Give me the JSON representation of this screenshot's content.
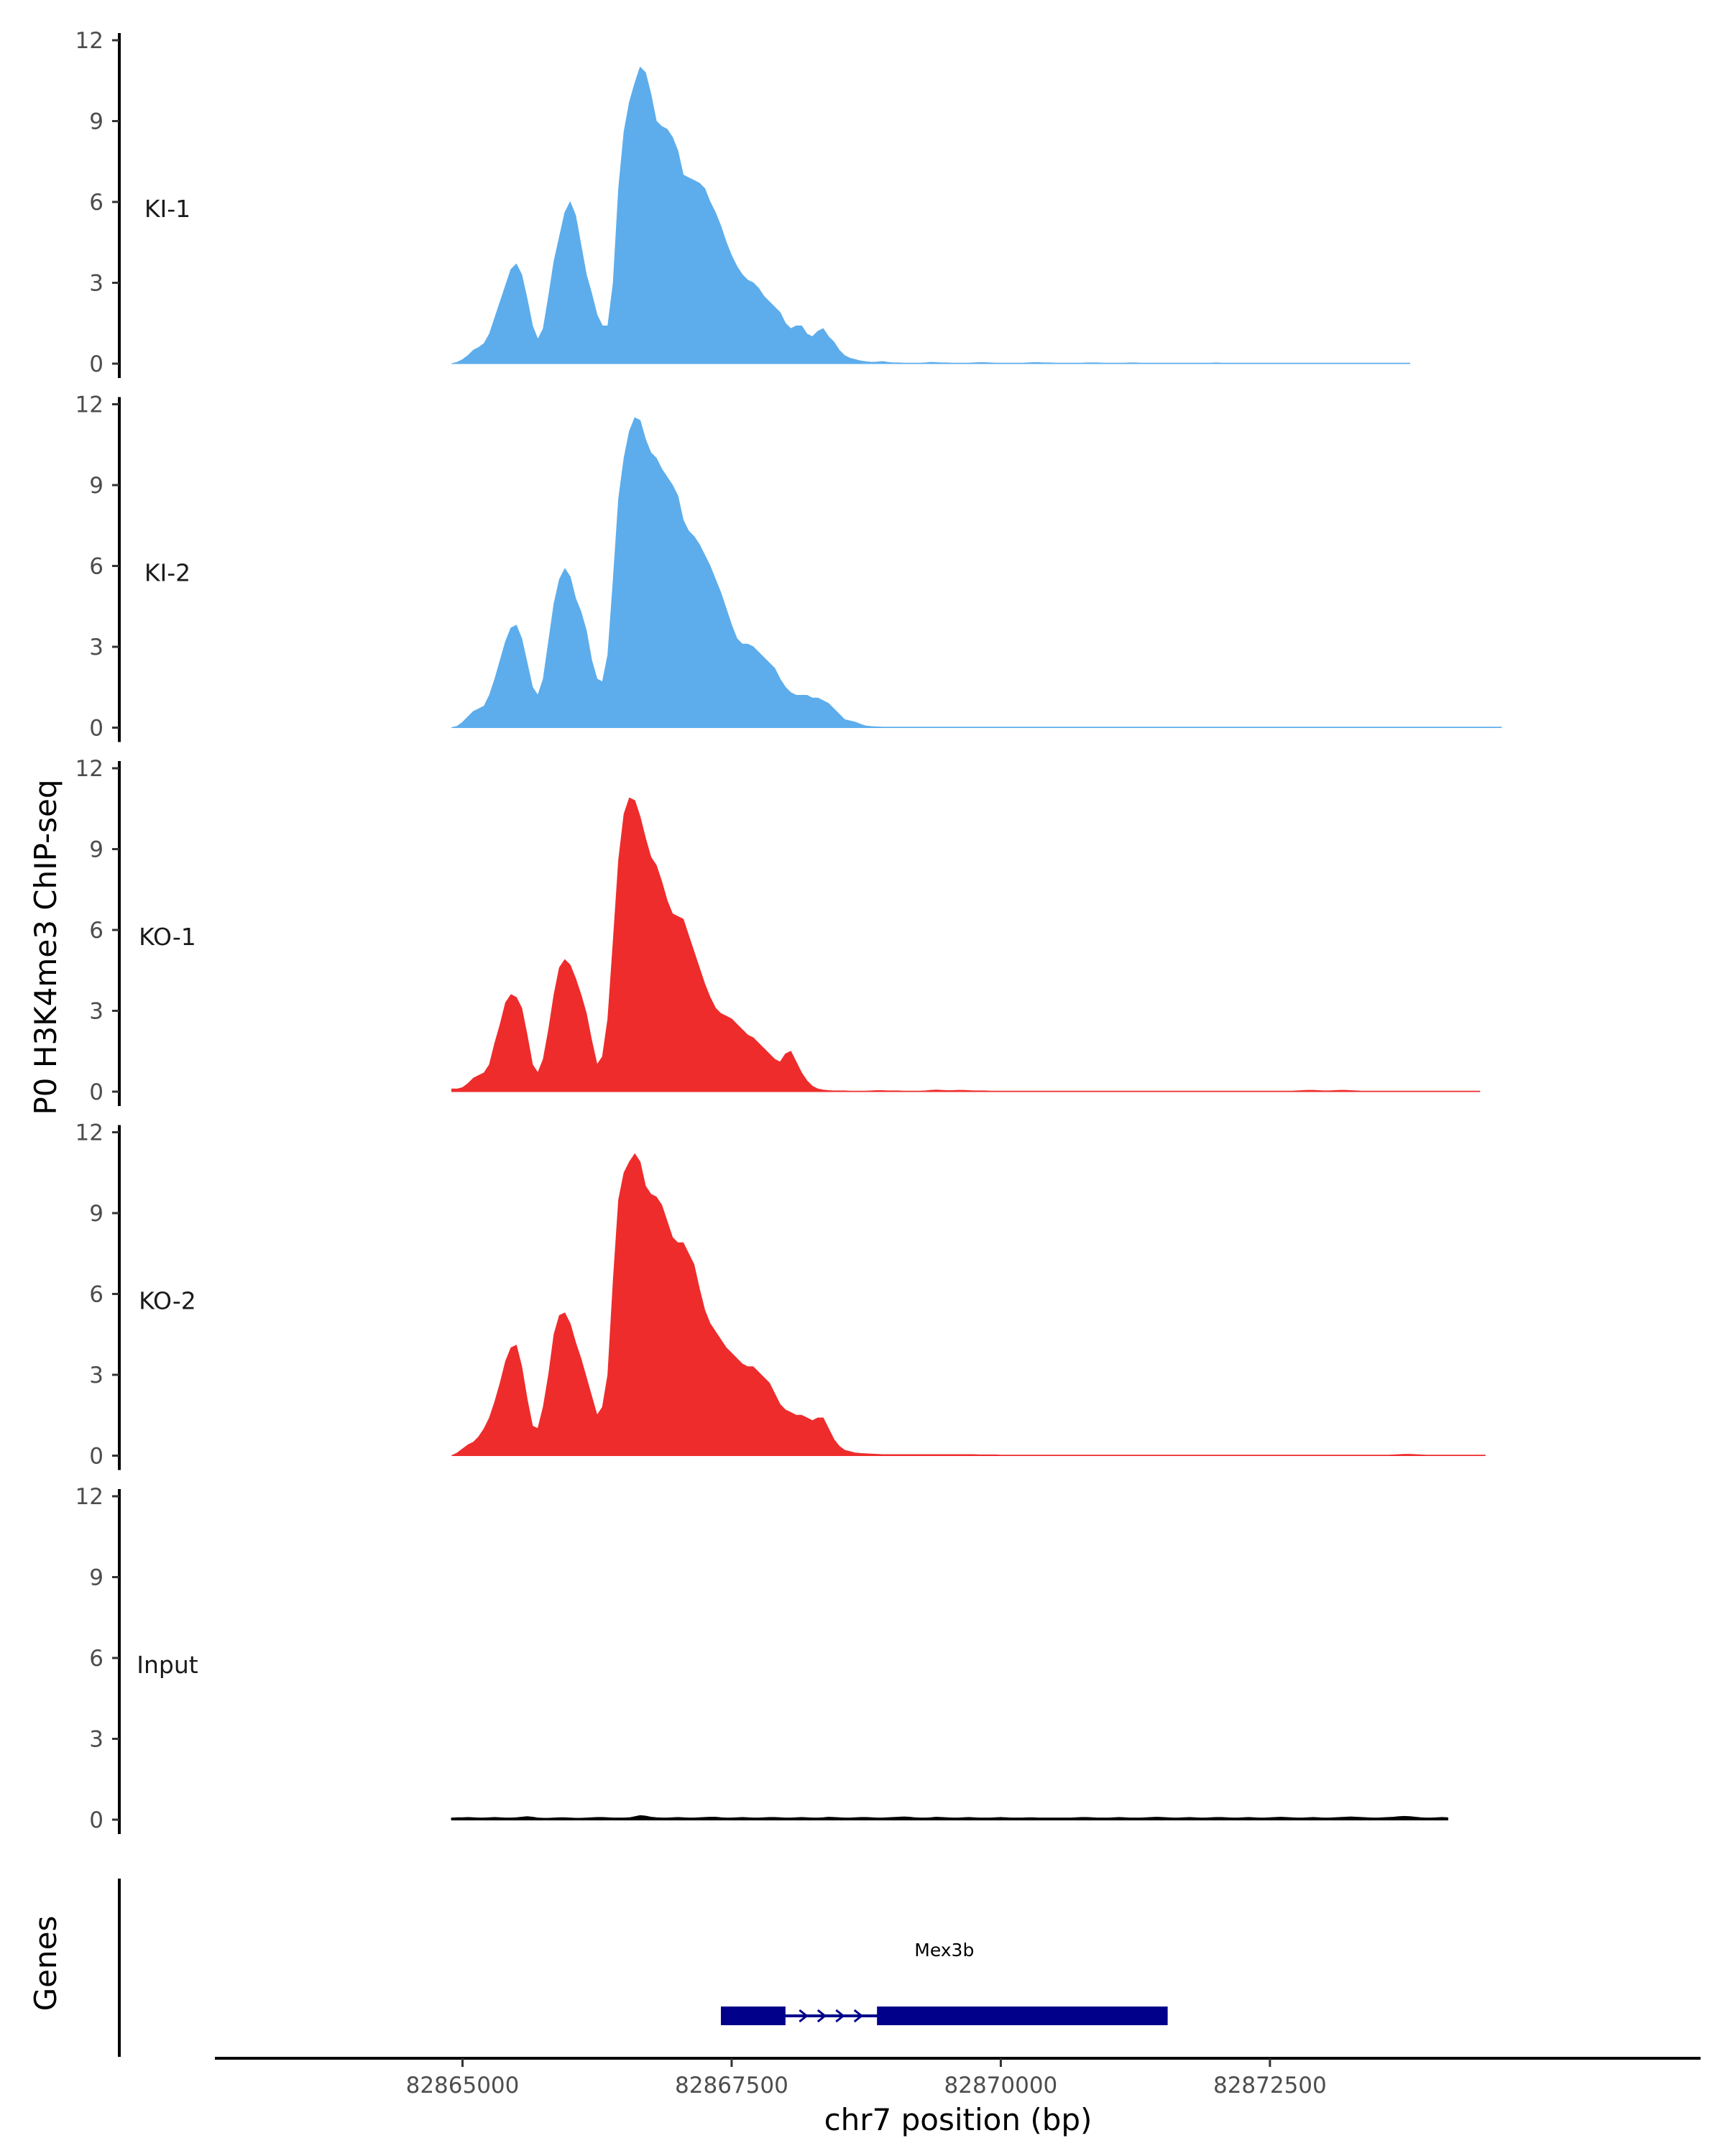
{
  "chart_data": {
    "type": "area",
    "ylabel": "P0 H3K4me3 ChIP-seq",
    "xlabel": "chr7 position (bp)",
    "xlim": [
      82862700,
      82876500
    ],
    "ylim": [
      0,
      12
    ],
    "yticks": [
      0,
      3,
      6,
      9,
      12
    ],
    "xticks": [
      82865000,
      82867500,
      82870000,
      82872500
    ],
    "xtick_labels": [
      "82865000",
      "82867500",
      "82870000",
      "82872500"
    ],
    "x_start": 82864900,
    "x_step": 50,
    "tracks": [
      {
        "name": "KI-1",
        "color": "#5DADEC",
        "values": [
          0.0,
          0.05,
          0.15,
          0.3,
          0.5,
          0.6,
          0.75,
          1.1,
          1.7,
          2.3,
          2.9,
          3.5,
          3.7,
          3.3,
          2.4,
          1.4,
          0.9,
          1.3,
          2.5,
          3.8,
          4.7,
          5.6,
          6.0,
          5.5,
          4.4,
          3.3,
          2.6,
          1.8,
          1.4,
          1.4,
          3.0,
          6.5,
          8.6,
          9.7,
          10.4,
          11.0,
          10.8,
          10.0,
          9.0,
          8.8,
          8.7,
          8.4,
          7.9,
          7.0,
          6.9,
          6.8,
          6.7,
          6.5,
          6.0,
          5.6,
          5.1,
          4.5,
          4.0,
          3.6,
          3.3,
          3.1,
          3.0,
          2.8,
          2.5,
          2.3,
          2.1,
          1.9,
          1.5,
          1.3,
          1.4,
          1.4,
          1.1,
          1.0,
          1.2,
          1.3,
          1.0,
          0.8,
          0.5,
          0.3,
          0.2,
          0.15,
          0.1,
          0.07,
          0.05,
          0.06,
          0.08,
          0.05,
          0.03,
          0.03,
          0.02,
          0.02,
          0.02,
          0.02,
          0.03,
          0.05,
          0.04,
          0.03,
          0.03,
          0.02,
          0.02,
          0.02,
          0.02,
          0.03,
          0.04,
          0.04,
          0.03,
          0.02,
          0.02,
          0.02,
          0.02,
          0.02,
          0.02,
          0.03,
          0.04,
          0.04,
          0.03,
          0.03,
          0.02,
          0.02,
          0.02,
          0.02,
          0.02,
          0.02,
          0.03,
          0.03,
          0.03,
          0.02,
          0.02,
          0.02,
          0.02,
          0.02,
          0.03,
          0.03,
          0.02,
          0.02,
          0.02,
          0.02,
          0.02,
          0.02,
          0.02,
          0.02,
          0.02,
          0.02,
          0.02,
          0.02,
          0.02,
          0.02,
          0.03,
          0.02,
          0.02,
          0.02,
          0.02,
          0.02,
          0.02,
          0.02,
          0.02,
          0.02,
          0.02,
          0.02,
          0.02,
          0.02,
          0.02,
          0.02,
          0.02,
          0.02,
          0.02,
          0.02,
          0.02,
          0.02,
          0.02,
          0.02,
          0.02,
          0.02,
          0.02,
          0.02,
          0.02,
          0.02,
          0.02,
          0.02,
          0.02,
          0.02,
          0.02,
          0.02,
          0.02
        ]
      },
      {
        "name": "KI-2",
        "color": "#5DADEC",
        "values": [
          0.0,
          0.05,
          0.2,
          0.4,
          0.6,
          0.7,
          0.8,
          1.2,
          1.8,
          2.5,
          3.2,
          3.7,
          3.8,
          3.3,
          2.4,
          1.5,
          1.2,
          1.8,
          3.2,
          4.6,
          5.5,
          5.9,
          5.6,
          4.8,
          4.3,
          3.6,
          2.5,
          1.8,
          1.7,
          2.7,
          5.5,
          8.5,
          10.0,
          11.0,
          11.5,
          11.4,
          10.7,
          10.2,
          10.0,
          9.6,
          9.3,
          9.0,
          8.6,
          7.7,
          7.3,
          7.1,
          6.8,
          6.4,
          6.0,
          5.5,
          5.0,
          4.4,
          3.8,
          3.3,
          3.1,
          3.1,
          3.0,
          2.8,
          2.6,
          2.4,
          2.2,
          1.8,
          1.5,
          1.3,
          1.2,
          1.2,
          1.2,
          1.1,
          1.1,
          1.0,
          0.9,
          0.7,
          0.5,
          0.3,
          0.25,
          0.2,
          0.12,
          0.06,
          0.04,
          0.03,
          0.02,
          0.02,
          0.02,
          0.02,
          0.02,
          0.02,
          0.02,
          0.02,
          0.02,
          0.02,
          0.02,
          0.02,
          0.02,
          0.02,
          0.02,
          0.02,
          0.02,
          0.02,
          0.02,
          0.02,
          0.02,
          0.02,
          0.02,
          0.02,
          0.02,
          0.02,
          0.02,
          0.02,
          0.02,
          0.02,
          0.02,
          0.02,
          0.02,
          0.02,
          0.02,
          0.02,
          0.02,
          0.02,
          0.02,
          0.02,
          0.02,
          0.02,
          0.02,
          0.02,
          0.02,
          0.02,
          0.02,
          0.02,
          0.02,
          0.02,
          0.02,
          0.02,
          0.02,
          0.02,
          0.02,
          0.02,
          0.02,
          0.02,
          0.02,
          0.02,
          0.02,
          0.02,
          0.02,
          0.02,
          0.02,
          0.02,
          0.02,
          0.02,
          0.02,
          0.02,
          0.02,
          0.02,
          0.02,
          0.02,
          0.02,
          0.02,
          0.02,
          0.02,
          0.02,
          0.02,
          0.02,
          0.02,
          0.02,
          0.02,
          0.02,
          0.02,
          0.02,
          0.02,
          0.02,
          0.02,
          0.02,
          0.02,
          0.02,
          0.02,
          0.02,
          0.02,
          0.02,
          0.02,
          0.02,
          0.02,
          0.02,
          0.02,
          0.02,
          0.02,
          0.02,
          0.02,
          0.02,
          0.02,
          0.02,
          0.02,
          0.02,
          0.02,
          0.02,
          0.02,
          0.02,
          0.02
        ]
      },
      {
        "name": "KO-1",
        "color": "#EE2C2C",
        "values": [
          0.1,
          0.1,
          0.15,
          0.3,
          0.5,
          0.6,
          0.7,
          1.0,
          1.8,
          2.5,
          3.3,
          3.6,
          3.5,
          3.1,
          2.1,
          1.0,
          0.7,
          1.2,
          2.3,
          3.6,
          4.6,
          4.9,
          4.7,
          4.2,
          3.6,
          2.9,
          1.9,
          1.0,
          1.3,
          2.7,
          5.6,
          8.6,
          10.3,
          10.9,
          10.8,
          10.2,
          9.4,
          8.7,
          8.4,
          7.8,
          7.1,
          6.6,
          6.5,
          6.4,
          5.8,
          5.2,
          4.6,
          4.0,
          3.5,
          3.1,
          2.9,
          2.8,
          2.7,
          2.5,
          2.3,
          2.1,
          2.0,
          1.8,
          1.6,
          1.4,
          1.2,
          1.1,
          1.4,
          1.5,
          1.1,
          0.7,
          0.4,
          0.2,
          0.1,
          0.06,
          0.04,
          0.03,
          0.03,
          0.03,
          0.02,
          0.02,
          0.02,
          0.02,
          0.03,
          0.04,
          0.04,
          0.03,
          0.03,
          0.03,
          0.02,
          0.02,
          0.02,
          0.02,
          0.03,
          0.05,
          0.06,
          0.05,
          0.04,
          0.04,
          0.05,
          0.05,
          0.04,
          0.03,
          0.03,
          0.03,
          0.02,
          0.02,
          0.02,
          0.02,
          0.02,
          0.02,
          0.02,
          0.02,
          0.02,
          0.02,
          0.02,
          0.02,
          0.02,
          0.02,
          0.02,
          0.02,
          0.02,
          0.02,
          0.02,
          0.02,
          0.02,
          0.02,
          0.02,
          0.02,
          0.02,
          0.02,
          0.02,
          0.02,
          0.02,
          0.02,
          0.02,
          0.02,
          0.02,
          0.02,
          0.02,
          0.02,
          0.02,
          0.02,
          0.02,
          0.02,
          0.02,
          0.02,
          0.02,
          0.02,
          0.02,
          0.02,
          0.02,
          0.02,
          0.02,
          0.02,
          0.02,
          0.02,
          0.02,
          0.02,
          0.02,
          0.02,
          0.02,
          0.03,
          0.04,
          0.05,
          0.05,
          0.04,
          0.03,
          0.03,
          0.04,
          0.05,
          0.05,
          0.04,
          0.03,
          0.02,
          0.02,
          0.02,
          0.02,
          0.02,
          0.02,
          0.02,
          0.02,
          0.02,
          0.02,
          0.02,
          0.02,
          0.02,
          0.02,
          0.02,
          0.02,
          0.02,
          0.02,
          0.02,
          0.02,
          0.02,
          0.02,
          0.02
        ]
      },
      {
        "name": "KO-2",
        "color": "#EE2C2C",
        "values": [
          0.0,
          0.1,
          0.25,
          0.4,
          0.5,
          0.7,
          1.0,
          1.4,
          2.0,
          2.7,
          3.5,
          4.0,
          4.1,
          3.3,
          2.1,
          1.1,
          1.0,
          1.8,
          3.0,
          4.5,
          5.2,
          5.3,
          4.9,
          4.2,
          3.6,
          2.9,
          2.2,
          1.5,
          1.8,
          3.0,
          6.5,
          9.5,
          10.5,
          10.9,
          11.2,
          10.9,
          10.0,
          9.7,
          9.6,
          9.3,
          8.7,
          8.1,
          7.9,
          7.9,
          7.5,
          7.1,
          6.2,
          5.4,
          4.9,
          4.6,
          4.3,
          4.0,
          3.8,
          3.6,
          3.4,
          3.3,
          3.3,
          3.1,
          2.9,
          2.7,
          2.3,
          1.9,
          1.7,
          1.6,
          1.5,
          1.5,
          1.4,
          1.3,
          1.4,
          1.4,
          1.0,
          0.6,
          0.35,
          0.2,
          0.15,
          0.1,
          0.08,
          0.07,
          0.06,
          0.05,
          0.04,
          0.04,
          0.04,
          0.04,
          0.04,
          0.04,
          0.04,
          0.04,
          0.04,
          0.04,
          0.04,
          0.04,
          0.04,
          0.04,
          0.04,
          0.04,
          0.04,
          0.04,
          0.03,
          0.03,
          0.03,
          0.03,
          0.02,
          0.02,
          0.02,
          0.02,
          0.02,
          0.02,
          0.02,
          0.02,
          0.02,
          0.02,
          0.02,
          0.02,
          0.02,
          0.02,
          0.02,
          0.02,
          0.02,
          0.02,
          0.02,
          0.02,
          0.02,
          0.02,
          0.02,
          0.02,
          0.02,
          0.02,
          0.02,
          0.02,
          0.02,
          0.02,
          0.02,
          0.02,
          0.02,
          0.02,
          0.02,
          0.02,
          0.02,
          0.02,
          0.02,
          0.02,
          0.02,
          0.02,
          0.02,
          0.02,
          0.02,
          0.02,
          0.02,
          0.02,
          0.02,
          0.02,
          0.02,
          0.02,
          0.02,
          0.02,
          0.02,
          0.02,
          0.02,
          0.02,
          0.02,
          0.02,
          0.02,
          0.02,
          0.02,
          0.02,
          0.02,
          0.02,
          0.02,
          0.02,
          0.02,
          0.02,
          0.02,
          0.02,
          0.02,
          0.03,
          0.04,
          0.05,
          0.05,
          0.04,
          0.03,
          0.02,
          0.02,
          0.02,
          0.02,
          0.02,
          0.02,
          0.02,
          0.02,
          0.02,
          0.02,
          0.02,
          0.02
        ]
      },
      {
        "name": "Input",
        "color": "#000000",
        "values": [
          0.05,
          0.06,
          0.06,
          0.07,
          0.06,
          0.05,
          0.05,
          0.06,
          0.07,
          0.06,
          0.05,
          0.05,
          0.06,
          0.08,
          0.1,
          0.08,
          0.05,
          0.04,
          0.04,
          0.05,
          0.06,
          0.06,
          0.05,
          0.04,
          0.04,
          0.05,
          0.06,
          0.07,
          0.07,
          0.06,
          0.05,
          0.05,
          0.05,
          0.06,
          0.1,
          0.14,
          0.12,
          0.08,
          0.06,
          0.05,
          0.05,
          0.06,
          0.07,
          0.06,
          0.05,
          0.05,
          0.06,
          0.07,
          0.08,
          0.08,
          0.06,
          0.05,
          0.05,
          0.06,
          0.07,
          0.06,
          0.05,
          0.05,
          0.06,
          0.07,
          0.07,
          0.06,
          0.05,
          0.05,
          0.06,
          0.07,
          0.06,
          0.05,
          0.05,
          0.06,
          0.08,
          0.07,
          0.06,
          0.05,
          0.05,
          0.06,
          0.07,
          0.07,
          0.06,
          0.05,
          0.05,
          0.06,
          0.07,
          0.08,
          0.09,
          0.08,
          0.06,
          0.05,
          0.05,
          0.06,
          0.08,
          0.07,
          0.06,
          0.05,
          0.05,
          0.06,
          0.07,
          0.06,
          0.05,
          0.05,
          0.05,
          0.06,
          0.07,
          0.06,
          0.05,
          0.05,
          0.05,
          0.06,
          0.06,
          0.05,
          0.05,
          0.05,
          0.05,
          0.05,
          0.05,
          0.05,
          0.06,
          0.07,
          0.07,
          0.06,
          0.05,
          0.05,
          0.05,
          0.06,
          0.07,
          0.06,
          0.05,
          0.05,
          0.05,
          0.06,
          0.07,
          0.08,
          0.07,
          0.06,
          0.05,
          0.05,
          0.06,
          0.07,
          0.06,
          0.05,
          0.05,
          0.06,
          0.07,
          0.07,
          0.06,
          0.05,
          0.05,
          0.06,
          0.07,
          0.06,
          0.05,
          0.05,
          0.06,
          0.07,
          0.08,
          0.07,
          0.06,
          0.05,
          0.05,
          0.06,
          0.07,
          0.06,
          0.05,
          0.05,
          0.06,
          0.07,
          0.08,
          0.09,
          0.08,
          0.07,
          0.06,
          0.05,
          0.05,
          0.06,
          0.07,
          0.08,
          0.1,
          0.11,
          0.1,
          0.08,
          0.06,
          0.05,
          0.05,
          0.06,
          0.07,
          0.06
        ]
      }
    ],
    "genes_label": "Genes",
    "gene": {
      "name": "Mex3b",
      "strand": "+",
      "color": "#00008B",
      "start": 82867400,
      "end": 82871550,
      "exons": [
        [
          82867400,
          82868000
        ],
        [
          82868850,
          82871550
        ]
      ]
    }
  }
}
